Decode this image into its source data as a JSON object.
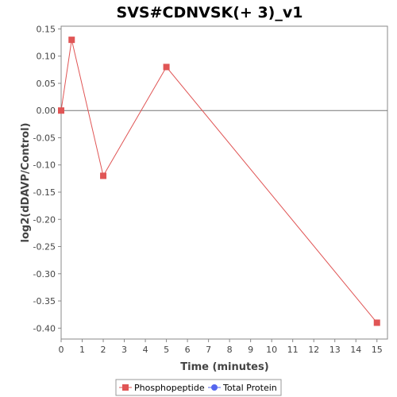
{
  "chart_data": {
    "type": "line",
    "title": "SVS#CDNVSK(+ 3)_v1",
    "xlabel": "Time (minutes)",
    "ylabel": "log2(dDAVP/Control)",
    "xlim": [
      0,
      15.5
    ],
    "ylim": [
      -0.42,
      0.155
    ],
    "x_ticks": [
      0,
      1,
      2,
      3,
      4,
      5,
      6,
      7,
      8,
      9,
      10,
      11,
      12,
      13,
      14,
      15
    ],
    "y_ticks": [
      0.15,
      0.1,
      0.05,
      0.0,
      -0.05,
      -0.1,
      -0.15,
      -0.2,
      -0.25,
      -0.3,
      -0.35,
      -0.4
    ],
    "y_tick_labels": [
      "0.15",
      "0.10",
      "0.05",
      "0.00",
      "-0.05",
      "-0.10",
      "-0.15",
      "-0.20",
      "-0.25",
      "-0.30",
      "-0.35",
      "-0.40"
    ],
    "zero_line": true,
    "grid": false,
    "legend_position": "bottom-center",
    "series": [
      {
        "name": "Phosphopeptide",
        "color": "#e05555",
        "marker": "square",
        "points": [
          {
            "x": 0,
            "y": 0.0
          },
          {
            "x": 0.5,
            "y": 0.13
          },
          {
            "x": 2,
            "y": -0.12
          },
          {
            "x": 5,
            "y": 0.08
          },
          {
            "x": 15,
            "y": -0.39
          }
        ]
      },
      {
        "name": "Total Protein",
        "color": "#5566ee",
        "marker": "circle",
        "points": []
      }
    ]
  }
}
